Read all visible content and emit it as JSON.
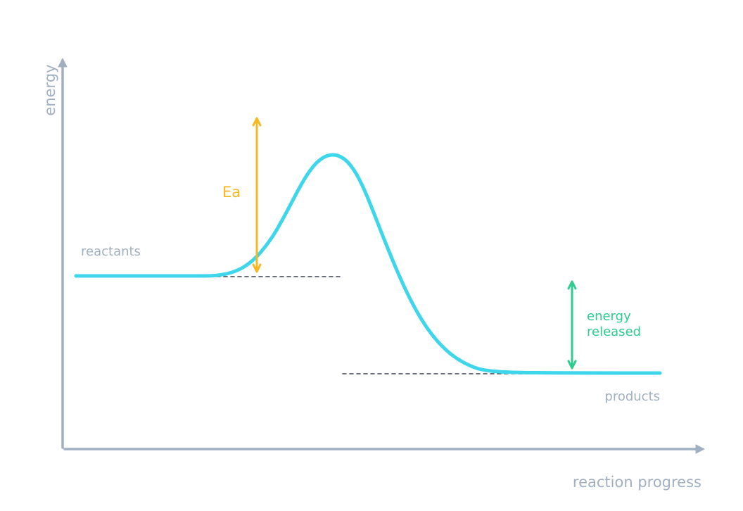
{
  "axes": {
    "y_label": "energy",
    "x_label": "reaction progress"
  },
  "labels": {
    "reactants": "reactants",
    "products": "products",
    "activation_energy": "Ea",
    "energy_released": [
      "energy",
      "released"
    ]
  }
}
